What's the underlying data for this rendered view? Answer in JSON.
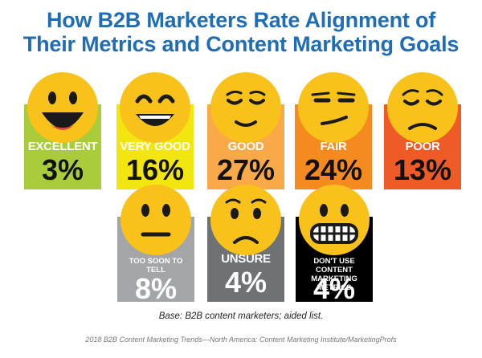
{
  "title_line1": "How B2B Marketers Rate Alignment of",
  "title_line2": "Their Metrics and Content Marketing Goals",
  "base_note": "Base: B2B content marketers; aided list.",
  "source_note": "2018 B2B Content Marketing Trends—North America: Content Marketing Institute/MarketingProfs",
  "chart_data": {
    "type": "table",
    "title": "How B2B Marketers Rate Alignment of Their Metrics and Content Marketing Goals",
    "categories": [
      "EXCELLENT",
      "VERY GOOD",
      "GOOD",
      "FAIR",
      "POOR",
      "TOO SOON TO TELL",
      "UNSURE",
      "DON'T USE CONTENT MARKETING METRICS"
    ],
    "values": [
      3,
      16,
      27,
      24,
      13,
      8,
      4,
      4
    ],
    "labels": [
      "3%",
      "16%",
      "27%",
      "24%",
      "13%",
      "8%",
      "4%",
      "4%"
    ],
    "colors": [
      "#a9cc3a",
      "#f2e510",
      "#f9a948",
      "#f58a1f",
      "#ef5b26",
      "#a3a5a8",
      "#6f7275",
      "#000000"
    ],
    "faces": [
      "big-grin",
      "smile",
      "content",
      "smirk",
      "sad",
      "neutral",
      "worried",
      "grimace"
    ]
  }
}
